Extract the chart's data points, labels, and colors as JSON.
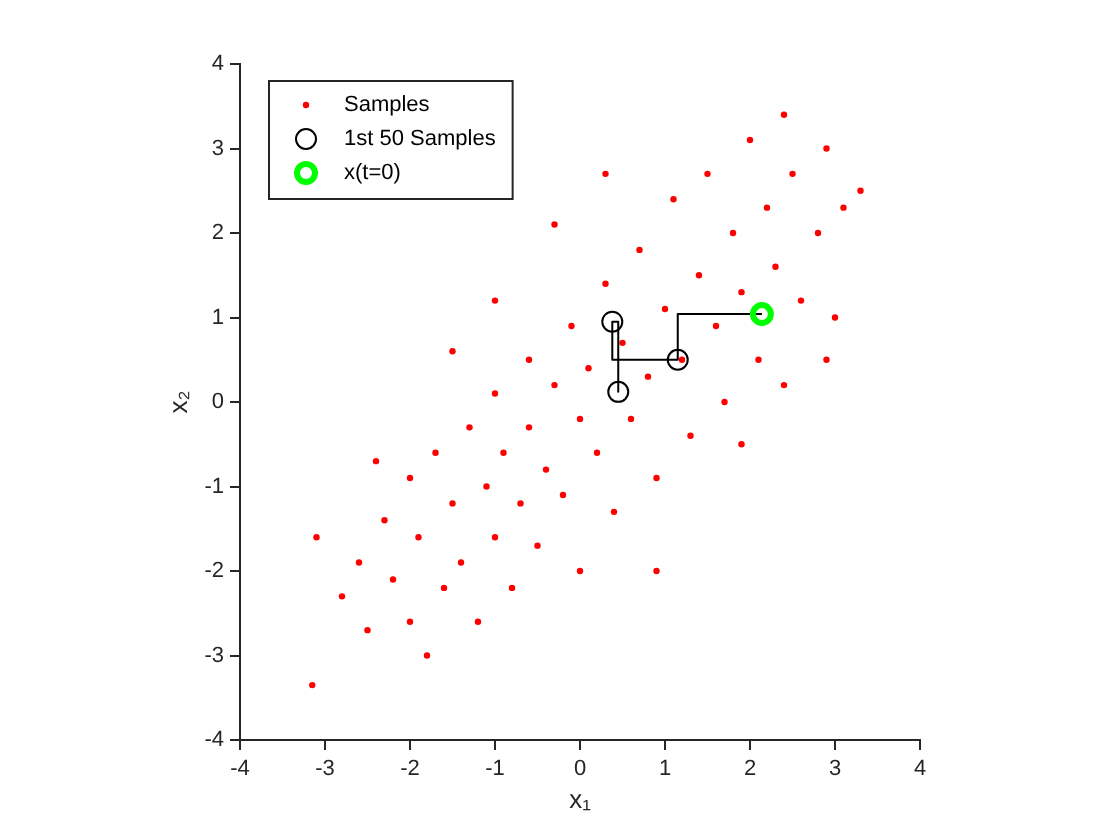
{
  "chart_data": {
    "type": "scatter",
    "xlabel": "x₁",
    "ylabel": "x₂",
    "xlim": [
      -4,
      4
    ],
    "ylim": [
      -4,
      4
    ],
    "xticks": [
      -4,
      -3,
      -2,
      -1,
      0,
      1,
      2,
      3,
      4
    ],
    "yticks": [
      -4,
      -3,
      -2,
      -1,
      0,
      1,
      2,
      3,
      4
    ],
    "grid": false,
    "legend": "top left",
    "series": [
      {
        "name": "Samples",
        "color": "#ff0000",
        "marker": "circle",
        "x": [
          -3.15,
          -3.1,
          -2.8,
          -2.6,
          -2.5,
          -2.3,
          -2.2,
          -2.0,
          -2.0,
          -1.9,
          -1.8,
          -1.7,
          -1.6,
          -1.5,
          -1.4,
          -1.3,
          -1.2,
          -1.1,
          -1.0,
          -1.0,
          -0.9,
          -0.8,
          -0.7,
          -0.6,
          -0.6,
          -0.5,
          -0.4,
          -0.3,
          -0.2,
          -0.1,
          0,
          0,
          0.1,
          0.2,
          0.3,
          0.4,
          0.5,
          0.6,
          0.7,
          0.8,
          0.9,
          1.0,
          1.1,
          1.2,
          1.3,
          1.4,
          1.5,
          1.6,
          1.7,
          1.8,
          1.9,
          2.0,
          2.1,
          2.2,
          2.3,
          2.4,
          2.5,
          2.6,
          2.8,
          2.9,
          3.0,
          3.1,
          3.3,
          2.4,
          -0.3,
          -1.0,
          0.9,
          -1.5,
          1.9,
          2.9,
          -2.4,
          0.3
        ],
        "values": [
          -3.35,
          -1.6,
          -2.3,
          -1.9,
          -2.7,
          -1.4,
          -2.1,
          -0.9,
          -2.6,
          -1.6,
          -3.0,
          -0.6,
          -2.2,
          -1.2,
          -1.9,
          -0.3,
          -2.6,
          -1.0,
          -1.6,
          0.1,
          -0.6,
          -2.2,
          -1.2,
          0.5,
          -0.3,
          -1.7,
          -0.8,
          0.2,
          -1.1,
          0.9,
          -0.2,
          -2.0,
          0.4,
          -0.6,
          1.4,
          -1.3,
          0.7,
          -0.2,
          1.8,
          0.3,
          -0.9,
          1.1,
          2.4,
          0.5,
          -0.4,
          1.5,
          2.7,
          0.9,
          0.0,
          2.0,
          1.3,
          3.1,
          0.5,
          2.3,
          1.6,
          0.2,
          2.7,
          1.2,
          2.0,
          3.0,
          1.0,
          2.3,
          2.5,
          3.4,
          2.1,
          1.2,
          -2.0,
          0.6,
          -0.5,
          0.5,
          -0.7,
          2.7
        ]
      },
      {
        "type": "line",
        "color": "#000000",
        "marker": "none",
        "x": [
          2.14,
          1.15,
          1.15,
          0.38,
          0.38,
          0.45,
          0.45
        ],
        "values": [
          1.04,
          1.04,
          0.5,
          0.5,
          0.95,
          0.95,
          0.12
        ]
      },
      {
        "name": "1st 50 Samples",
        "color": "#000000",
        "marker": "circle",
        "x": [
          1.15,
          0.38,
          0.45
        ],
        "values": [
          0.5,
          0.95,
          0.12
        ]
      },
      {
        "name": "x(t=0)",
        "color": "#00ff00",
        "marker": "circle",
        "x": [
          2.14
        ],
        "values": [
          1.04
        ]
      }
    ]
  }
}
